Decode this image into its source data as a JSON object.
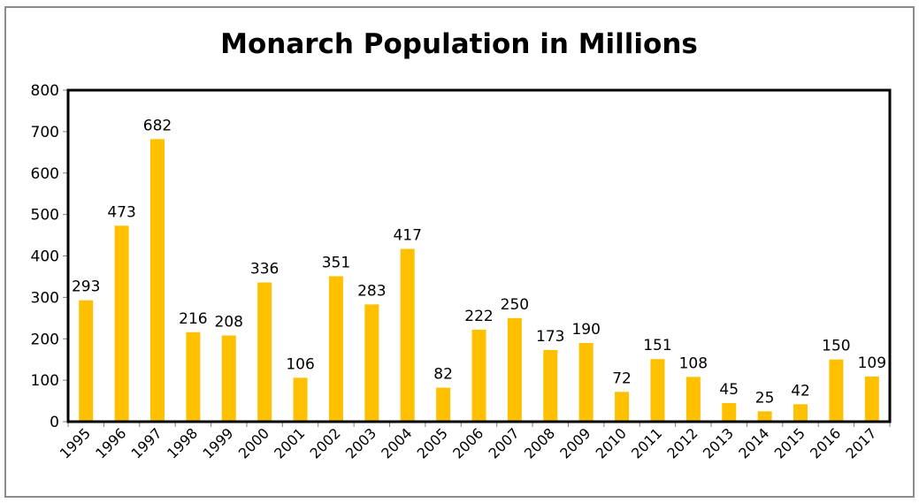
{
  "chart_data": {
    "type": "bar",
    "title": "Monarch Population in Millions",
    "xlabel": "",
    "ylabel": "",
    "categories": [
      "1995",
      "1996",
      "1997",
      "1998",
      "1999",
      "2000",
      "2001",
      "2002",
      "2003",
      "2004",
      "2005",
      "2006",
      "2007",
      "2008",
      "2009",
      "2010",
      "2011",
      "2012",
      "2013",
      "2014",
      "2015",
      "2016",
      "2017"
    ],
    "series": [
      {
        "name": "Monarch Population (millions)",
        "values": [
          293,
          473,
          682,
          216,
          208,
          336,
          106,
          351,
          283,
          417,
          82,
          222,
          250,
          173,
          190,
          72,
          151,
          108,
          45,
          25,
          42,
          150,
          109
        ],
        "color": "#ffc000"
      }
    ],
    "data_labels": [
      "293",
      "473",
      "682",
      "216",
      "208",
      "336",
      "106",
      "351",
      "283",
      "417",
      "82",
      "222",
      "250",
      "173",
      "190",
      "72",
      "151",
      "108",
      "45",
      "25",
      "42",
      "150",
      "109"
    ],
    "ylim": [
      0,
      800
    ],
    "yticks": [
      0,
      100,
      200,
      300,
      400,
      500,
      600,
      700,
      800
    ],
    "ytick_labels": [
      "0",
      "100",
      "200",
      "300",
      "400",
      "500",
      "600",
      "700",
      "800"
    ],
    "grid": false,
    "legend": "none",
    "x_tick_rotation": "-45deg"
  }
}
